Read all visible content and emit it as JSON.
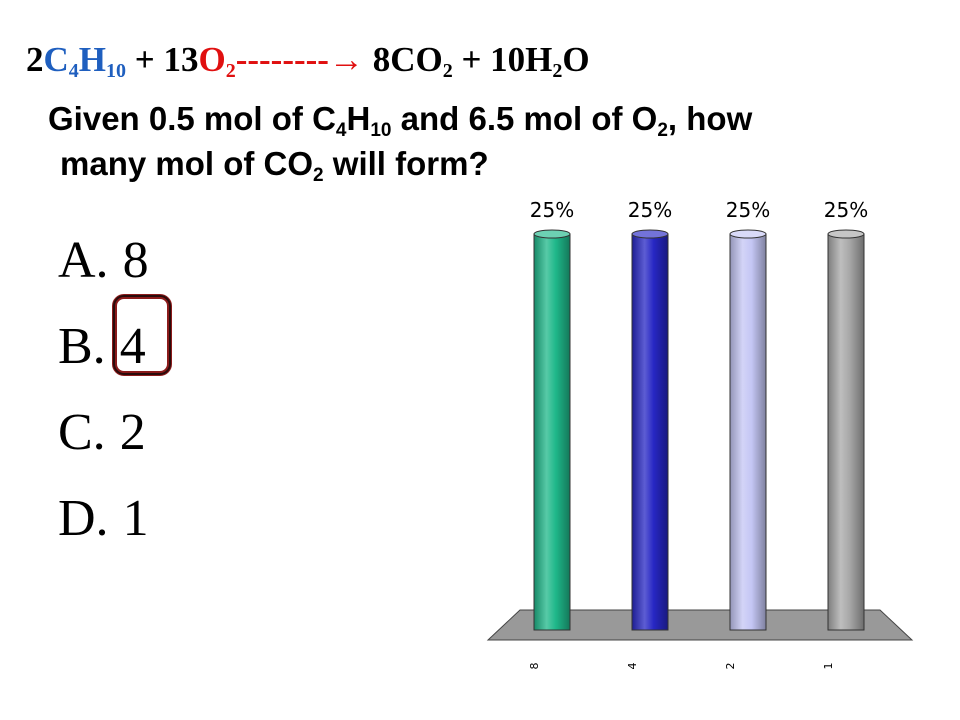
{
  "equation": {
    "coef1": "2",
    "reactant1_c": "C",
    "reactant1_c_sub": "4",
    "reactant1_h": "H",
    "reactant1_h_sub": "10",
    "plus1": " + 13",
    "reactant2": "O",
    "reactant2_sub": "2",
    "arrow": "--------→",
    "products_a": " 8CO",
    "products_a_sub": "2",
    "products_b": " + 10H",
    "products_b_sub": "2",
    "products_c": "O"
  },
  "question": {
    "part1": "Given 0.5 mol of C",
    "sub1": "4",
    "part2": "H",
    "sub2": "10",
    "part3": " and 6.5 mol of O",
    "sub3": "2",
    "part4": ", how",
    "part5": "many mol of CO",
    "sub4": "2",
    "part6": " will form?"
  },
  "answers": [
    {
      "letter": "A.",
      "value": "8"
    },
    {
      "letter": "B.",
      "value": "4"
    },
    {
      "letter": "C.",
      "value": "2"
    },
    {
      "letter": "D.",
      "value": "1"
    }
  ],
  "colors": {
    "equation_blue": "#1f5fbf",
    "equation_red": "#e01010",
    "highlight": "#8b1b1b"
  },
  "chart_data": {
    "type": "bar",
    "categories": [
      "8",
      "4",
      "2",
      "1"
    ],
    "values": [
      25,
      25,
      25,
      25
    ],
    "value_labels": [
      "25%",
      "25%",
      "25%",
      "25%"
    ],
    "colors": [
      "#1fb88a",
      "#2727c4",
      "#c4c6f4",
      "#a8a8a8"
    ],
    "ylim": [
      0,
      25
    ],
    "grid": false
  }
}
